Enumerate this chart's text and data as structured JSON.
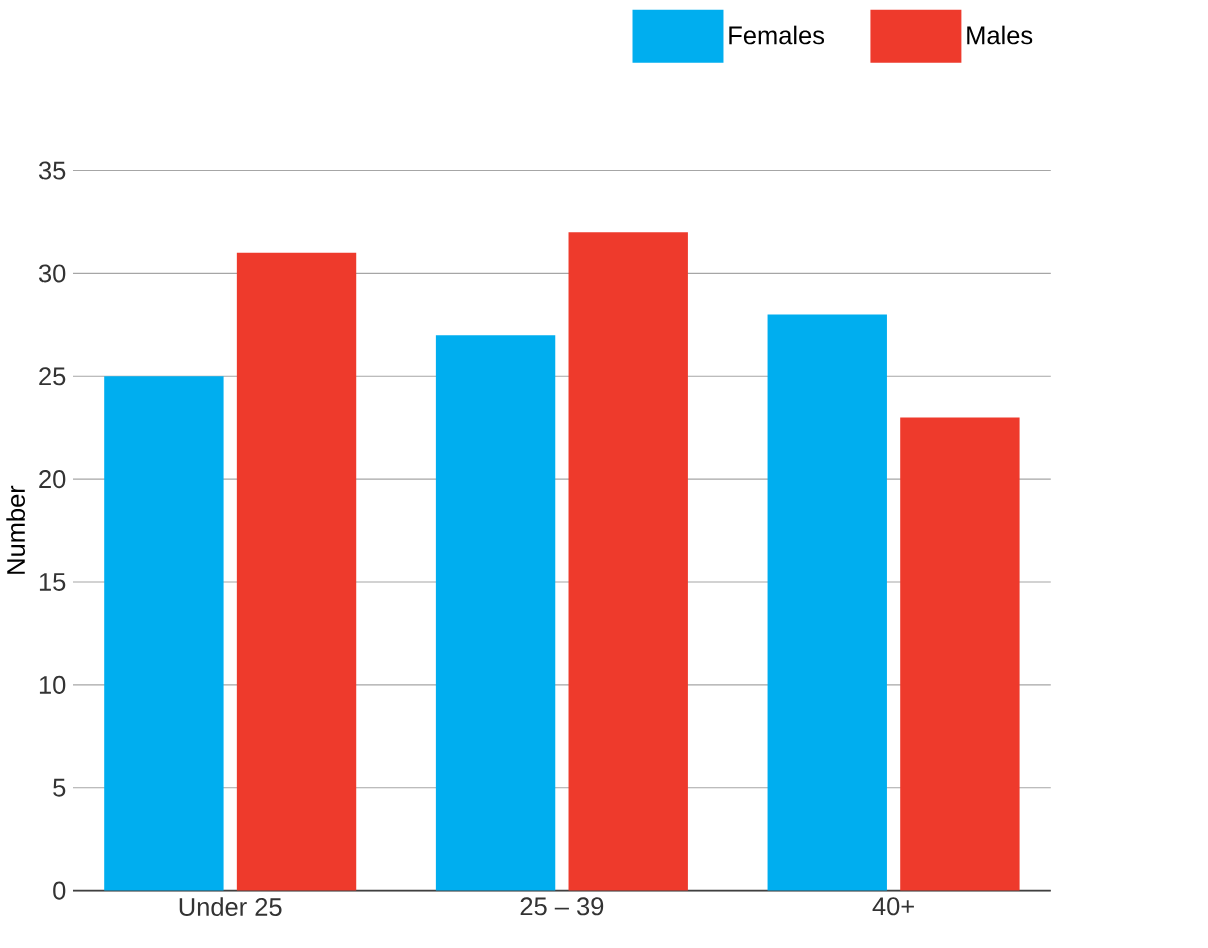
{
  "chart_data": {
    "type": "bar",
    "ylabel": "Number",
    "categories": [
      "Under 25",
      "25 – 39",
      "40+"
    ],
    "series": [
      {
        "name": "Females",
        "color": "#00aeef",
        "values": [
          25,
          27,
          28
        ]
      },
      {
        "name": "Males",
        "color": "#ee3a2c",
        "values": [
          31,
          32,
          23
        ]
      }
    ],
    "ylim": [
      0,
      35
    ],
    "yticks": [
      0,
      5,
      10,
      15,
      20,
      25,
      30,
      35
    ],
    "grid": "y",
    "legend": "top right"
  }
}
